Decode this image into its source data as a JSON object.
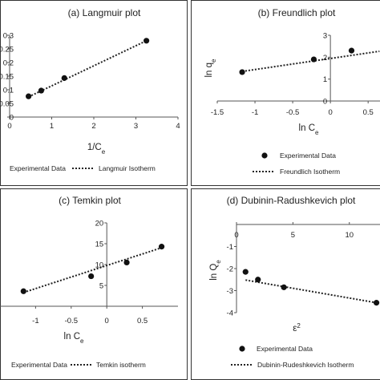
{
  "chart_data": [
    {
      "type": "scatter",
      "title": "(a) Langmuir plot",
      "xlabel": "1/C",
      "xlabel_sub": "e",
      "ylabel": "",
      "ylabel_sub": "",
      "xlim": [
        0,
        4
      ],
      "ylim": [
        0,
        0.3
      ],
      "x_ticks": [
        "0",
        "1",
        "2",
        "3",
        "4"
      ],
      "y_ticks": [
        "0",
        "0.05",
        "0.1",
        "0.15",
        "0.2",
        "0.25",
        "0.3"
      ],
      "series": [
        {
          "name": "Experimental Data",
          "points": [
            {
              "x": 0.45,
              "y": 0.076
            },
            {
              "x": 0.75,
              "y": 0.097
            },
            {
              "x": 1.3,
              "y": 0.143
            },
            {
              "x": 3.25,
              "y": 0.28
            }
          ]
        },
        {
          "name": "Langmuir Isotherm",
          "line": [
            {
              "x": 0.45,
              "y": 0.074
            },
            {
              "x": 3.25,
              "y": 0.28
            }
          ]
        }
      ],
      "legend": [
        "Experimental Data",
        "Langmuir Isotherm"
      ],
      "legend_position": "bottom"
    },
    {
      "type": "scatter",
      "title": "(b) Freundlich plot",
      "xlabel": "ln C",
      "xlabel_sub": "e",
      "ylabel": "ln q",
      "ylabel_sub": "e",
      "xlim": [
        -1.5,
        0.7
      ],
      "ylim": [
        0,
        3
      ],
      "x_ticks": [
        "-1.5",
        "-1",
        "-0.5",
        "0",
        "0.5"
      ],
      "y_ticks": [
        "0",
        "1",
        "2",
        "3"
      ],
      "series": [
        {
          "name": "Experimental Data",
          "points": [
            {
              "x": -1.17,
              "y": 1.32
            },
            {
              "x": -0.22,
              "y": 1.9
            },
            {
              "x": 0.28,
              "y": 2.3
            }
          ]
        },
        {
          "name": "Freundlich Isotherm",
          "line": [
            {
              "x": -1.17,
              "y": 1.35
            },
            {
              "x": 0.65,
              "y": 2.27
            }
          ]
        }
      ],
      "legend": [
        "Experimental Data",
        "Freundlich Isotherm"
      ],
      "legend_position": "bottom"
    },
    {
      "type": "scatter",
      "title": "(c) Temkin plot",
      "xlabel": "ln C",
      "xlabel_sub": "e",
      "ylabel": "",
      "ylabel_sub": "",
      "xlim": [
        -1.5,
        1
      ],
      "ylim": [
        0,
        20
      ],
      "x_ticks": [
        "-1",
        "-0.5",
        "0",
        "0.5"
      ],
      "y_ticks": [
        "5",
        "10",
        "15",
        "20"
      ],
      "series": [
        {
          "name": "Experimental Data",
          "points": [
            {
              "x": -1.17,
              "y": 3.6
            },
            {
              "x": -0.22,
              "y": 7.2
            },
            {
              "x": 0.28,
              "y": 10.5
            },
            {
              "x": 0.77,
              "y": 14.3
            }
          ]
        },
        {
          "name": "Temkin isotherm",
          "line": [
            {
              "x": -1.17,
              "y": 3.3
            },
            {
              "x": 0.8,
              "y": 14.2
            }
          ]
        }
      ],
      "legend": [
        "Experimental Data",
        "Temkin isotherm"
      ],
      "legend_position": "bottom"
    },
    {
      "type": "scatter",
      "title": "(d) Dubinin-Radushkevich plot",
      "xlabel": "ε",
      "xlabel_sup": "2",
      "ylabel": "ln Q",
      "ylabel_sub": "e",
      "xlim": [
        0,
        13
      ],
      "ylim": [
        -4,
        0
      ],
      "x_ticks": [
        "0",
        "5",
        "10"
      ],
      "y_ticks": [
        "-1",
        "-2",
        "-3",
        "-4"
      ],
      "series": [
        {
          "name": "Experimental Data",
          "points": [
            {
              "x": 0.8,
              "y": -2.15
            },
            {
              "x": 1.9,
              "y": -2.5
            },
            {
              "x": 4.2,
              "y": -2.85
            },
            {
              "x": 12.4,
              "y": -3.55
            }
          ]
        },
        {
          "name": "Dubinin-Rudeshkevich Isotherm",
          "line": [
            {
              "x": 0.8,
              "y": -2.52
            },
            {
              "x": 12.4,
              "y": -3.55
            }
          ]
        }
      ],
      "legend": [
        "Experimental Data",
        "Dubinin-Rudeshkevich Isotherm"
      ],
      "legend_position": "bottom"
    }
  ]
}
